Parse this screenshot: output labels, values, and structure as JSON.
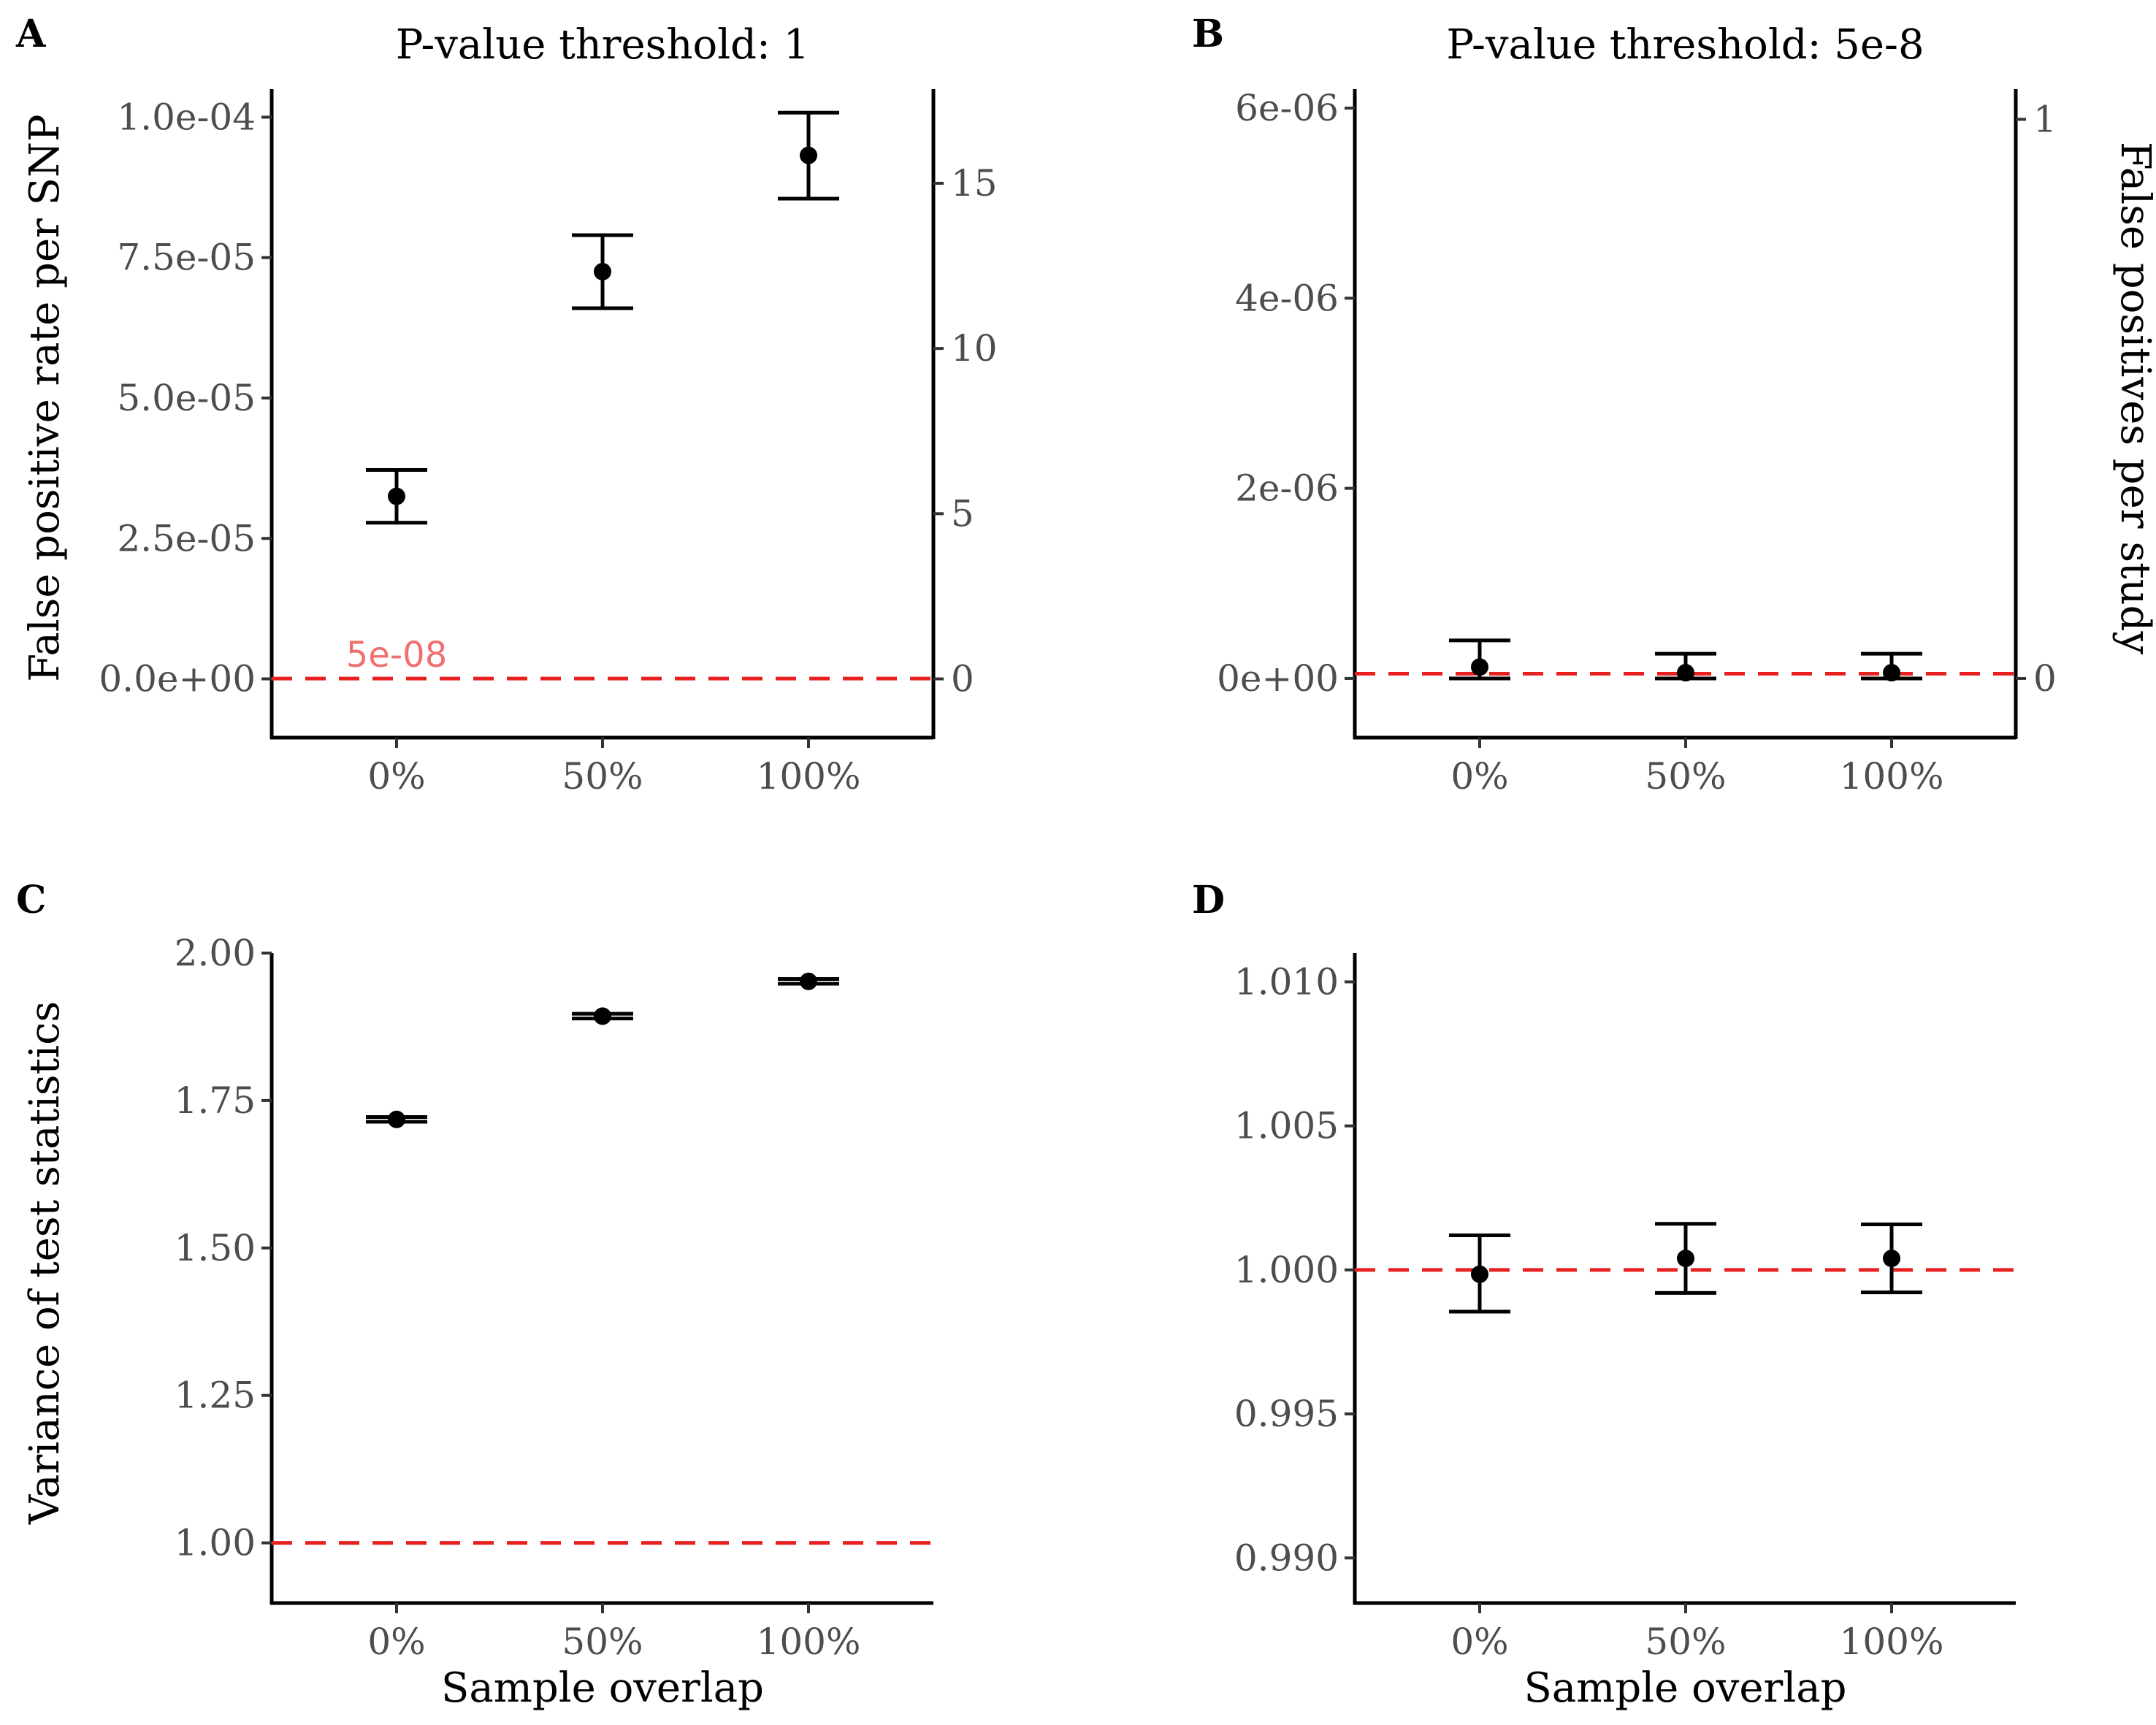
{
  "figure": {
    "x_categories": [
      "0%",
      "50%",
      "100%"
    ],
    "colors": {
      "reference_line": "#e8201f",
      "reference_label": "#f07070",
      "marks": "#000000",
      "ticks": "#4d4d4d"
    }
  },
  "chart_data": [
    {
      "letter": "A",
      "type": "scatter",
      "title": "P-value threshold: 1",
      "ylabel": "False positive rate per SNP",
      "xlabel": "",
      "ylim": [
        -5e-06,
        0.000105
      ],
      "yticks": [
        0,
        2.5e-05,
        5e-05,
        7.5e-05,
        0.0001
      ],
      "yticklabels": [
        "0.0e+00",
        "2.5e-05",
        "5.0e-05",
        "7.5e-05",
        "1.0e-04"
      ],
      "secondary_axis": {
        "label": "",
        "scale": 170000,
        "ticks": [
          0,
          5,
          10,
          15
        ],
        "ticklabels": [
          "0",
          "5",
          "10",
          "15"
        ]
      },
      "points": [
        {
          "x": "0%",
          "y": 3.25e-05,
          "ymin": 2.78e-05,
          "ymax": 3.72e-05
        },
        {
          "x": "50%",
          "y": 7.25e-05,
          "ymin": 6.6e-05,
          "ymax": 7.9e-05
        },
        {
          "x": "100%",
          "y": 9.32e-05,
          "ymin": 8.55e-05,
          "ymax": 0.0001008
        }
      ],
      "reference_line": {
        "y": 5e-08,
        "label": "5e-08"
      }
    },
    {
      "letter": "B",
      "type": "scatter",
      "title": "P-value threshold: 5e-8",
      "ylabel": "",
      "xlabel": "",
      "ylim": [
        -3e-07,
        6.2e-06
      ],
      "yticks": [
        0,
        2e-06,
        4e-06,
        6e-06
      ],
      "yticklabels": [
        "0e+00",
        "2e-06",
        "4e-06",
        "6e-06"
      ],
      "secondary_axis": {
        "label": "False positives per study",
        "scale": 170000,
        "ticks": [
          0,
          1
        ],
        "ticklabels": [
          "0",
          "1"
        ]
      },
      "points": [
        {
          "x": "0%",
          "y": 1.2e-07,
          "ymin": 0,
          "ymax": 4e-07
        },
        {
          "x": "50%",
          "y": 6e-08,
          "ymin": 0,
          "ymax": 2.6e-07
        },
        {
          "x": "100%",
          "y": 6e-08,
          "ymin": 0,
          "ymax": 2.6e-07
        }
      ],
      "reference_line": {
        "y": 5e-08,
        "label": ""
      }
    },
    {
      "letter": "C",
      "type": "scatter",
      "title": "",
      "ylabel": "Variance of test statistics",
      "xlabel": "Sample overlap",
      "ylim": [
        0.95,
        2.0
      ],
      "yticks": [
        1.0,
        1.25,
        1.5,
        1.75,
        2.0
      ],
      "yticklabels": [
        "1.00",
        "1.25",
        "1.50",
        "1.75",
        "2.00"
      ],
      "points": [
        {
          "x": "0%",
          "y": 1.718,
          "ymin": 1.714,
          "ymax": 1.722
        },
        {
          "x": "50%",
          "y": 1.893,
          "ymin": 1.889,
          "ymax": 1.897
        },
        {
          "x": "100%",
          "y": 1.952,
          "ymin": 1.948,
          "ymax": 1.956
        }
      ],
      "reference_line": {
        "y": 1.0,
        "label": ""
      }
    },
    {
      "letter": "D",
      "type": "scatter",
      "title": "",
      "ylabel": "",
      "xlabel": "Sample overlap",
      "ylim": [
        0.9895,
        1.011
      ],
      "yticks": [
        0.99,
        0.995,
        1.0,
        1.005,
        1.01
      ],
      "yticklabels": [
        "0.990",
        "0.995",
        "1.000",
        "1.005",
        "1.010"
      ],
      "points": [
        {
          "x": "0%",
          "y": 0.99985,
          "ymin": 0.99855,
          "ymax": 1.0012
        },
        {
          "x": "50%",
          "y": 1.0004,
          "ymin": 0.9992,
          "ymax": 1.0016
        },
        {
          "x": "100%",
          "y": 1.0004,
          "ymin": 0.99922,
          "ymax": 1.00158
        }
      ],
      "reference_line": {
        "y": 1.0,
        "label": ""
      }
    }
  ]
}
